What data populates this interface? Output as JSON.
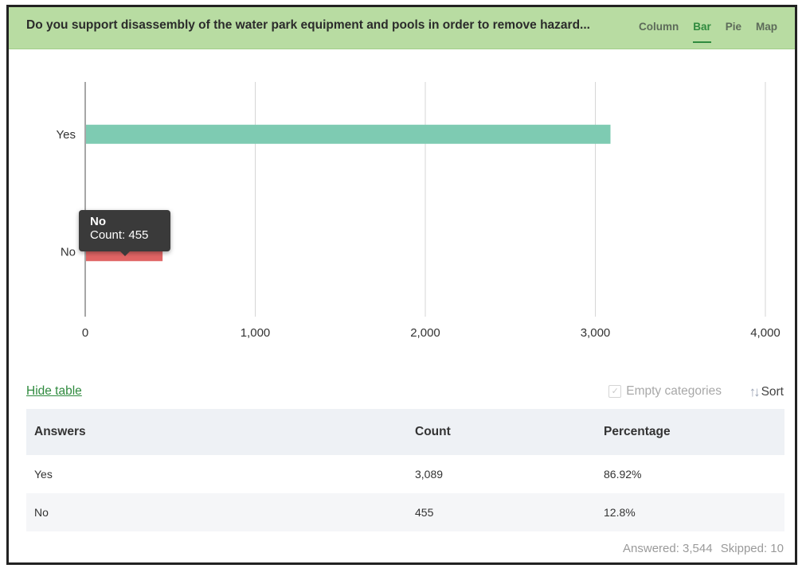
{
  "header": {
    "question": "Do you support disassembly of the water park equipment and pools in order to remove hazard...",
    "tabs": [
      {
        "label": "Column",
        "active": false
      },
      {
        "label": "Bar",
        "active": true
      },
      {
        "label": "Pie",
        "active": false
      },
      {
        "label": "Map",
        "active": false
      }
    ]
  },
  "tooltip": {
    "title": "No",
    "text": "Count: 455"
  },
  "controls": {
    "hide_table": "Hide table",
    "empty_categories": "Empty categories",
    "sort": "Sort"
  },
  "table": {
    "headers": [
      "Answers",
      "Count",
      "Percentage"
    ],
    "rows": [
      [
        "Yes",
        "3,089",
        "86.92%"
      ],
      [
        "No",
        "455",
        "12.8%"
      ]
    ]
  },
  "footer": {
    "answered": "Answered: 3,544",
    "skipped": "Skipped: 10"
  },
  "colors": {
    "yes": "#7ecbb2",
    "no": "#e06565",
    "accent": "#2f8a3e",
    "header_bg": "#b8dca2"
  },
  "chart_data": {
    "type": "bar",
    "orientation": "horizontal",
    "categories": [
      "Yes",
      "No"
    ],
    "values": [
      3089,
      455
    ],
    "xlim": [
      0,
      4000
    ],
    "ticks": [
      0,
      1000,
      2000,
      3000,
      4000
    ],
    "tick_labels": [
      "0",
      "1,000",
      "2,000",
      "3,000",
      "4,000"
    ],
    "grid": true,
    "colors": [
      "#7ecbb2",
      "#e06565"
    ]
  }
}
